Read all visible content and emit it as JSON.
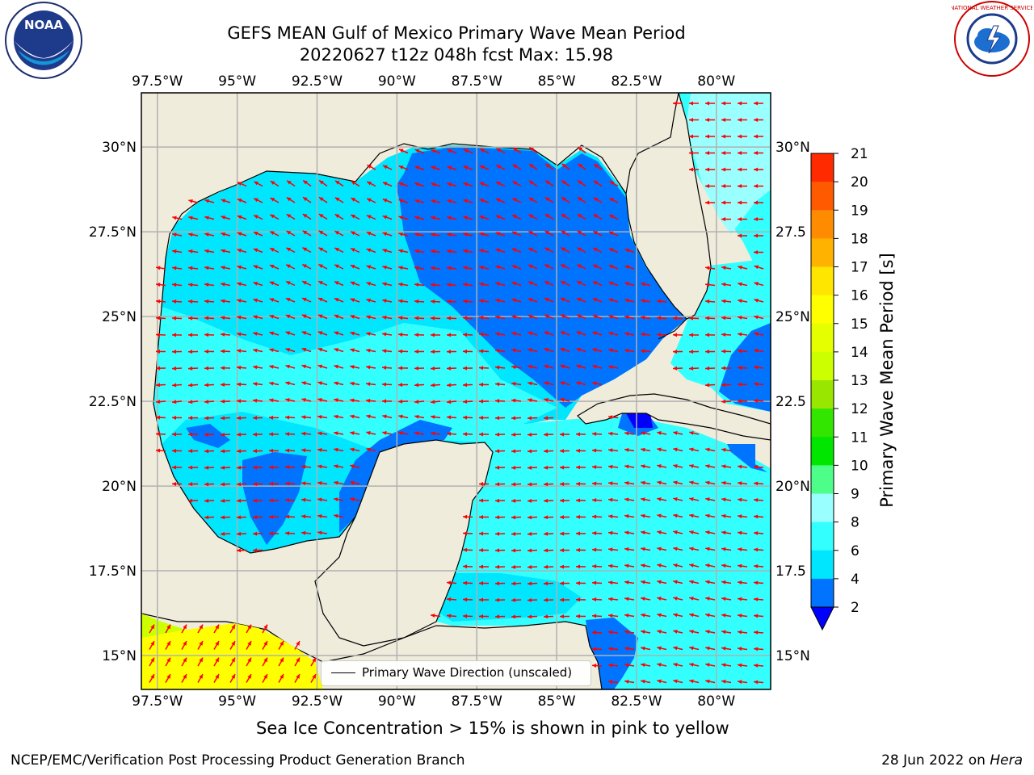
{
  "title": {
    "line1": "GEFS MEAN Gulf of Mexico Primary Wave Mean Period",
    "line2": "20220627 t12z 048h fcst   Max: 15.98"
  },
  "map": {
    "lon_ticks": [
      "97.5°W",
      "95°W",
      "92.5°W",
      "90°W",
      "87.5°W",
      "85°W",
      "82.5°W",
      "80°W"
    ],
    "lat_ticks_left": [
      "30°N",
      "27.5°N",
      "25°N",
      "22.5°N",
      "20°N",
      "17.5°N",
      "15°N"
    ],
    "lat_ticks_right": [
      "30°N",
      "27.5",
      "25°N",
      "22.5",
      "20°N",
      "17.5",
      "15°N"
    ],
    "lon_range": [
      -98,
      -78.3
    ],
    "lat_range": [
      14,
      31.6
    ],
    "land_color": "#efecdc",
    "arrow_color": "#ff0000"
  },
  "legend": {
    "label": "Primary Wave Direction (unscaled)"
  },
  "colorbar": {
    "label": "Primary Wave Mean Period [s]",
    "ticks": [
      "2",
      "4",
      "6",
      "8",
      "9",
      "10",
      "11",
      "12",
      "13",
      "14",
      "15",
      "16",
      "17",
      "18",
      "19",
      "20",
      "21"
    ],
    "colors": [
      "#0073ff",
      "#00e6ff",
      "#33ffff",
      "#99ffff",
      "#4dff88",
      "#00e600",
      "#33e600",
      "#99e600",
      "#ccff00",
      "#e6ff00",
      "#ffff00",
      "#ffe600",
      "#ffb300",
      "#ff8c00",
      "#ff5a00",
      "#ff2a00"
    ],
    "under_color": "#0000ff"
  },
  "note": "Sea Ice Concentration > 15% is shown in pink to yellow",
  "footer": {
    "left": "NCEP/EMC/Verification Post Processing Product Generation Branch",
    "right_date": "28 Jun 2022 on ",
    "right_host": "Hera"
  },
  "logos": {
    "left": "NOAA",
    "right": "NATIONAL WEATHER SERVICE"
  }
}
